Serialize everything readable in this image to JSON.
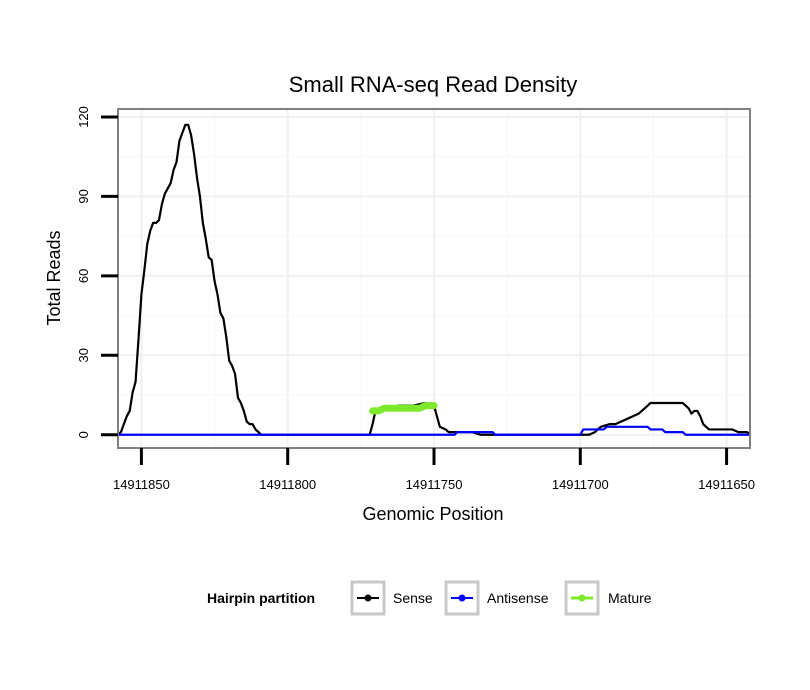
{
  "chart_data": {
    "type": "line",
    "title": "Small RNA-seq Read Density",
    "xlabel": "Genomic Position",
    "ylabel": "Total Reads",
    "x_reversed": true,
    "xlim": [
      14911858,
      14911642
    ],
    "ylim": [
      -5,
      123
    ],
    "x_ticks": [
      14911850,
      14911800,
      14911750,
      14911700,
      14911650
    ],
    "y_ticks": [
      0,
      30,
      60,
      90,
      120
    ],
    "grid": true,
    "legend": {
      "title": "Hairpin partition",
      "position": "bottom",
      "entries": [
        "Sense",
        "Antisense",
        "Mature"
      ]
    },
    "series": [
      {
        "name": "Sense",
        "color": "#000000",
        "points": [
          [
            14911858,
            0
          ],
          [
            14911857,
            1
          ],
          [
            14911856,
            4
          ],
          [
            14911855,
            7
          ],
          [
            14911854,
            9
          ],
          [
            14911853,
            16
          ],
          [
            14911852,
            20
          ],
          [
            14911851,
            36
          ],
          [
            14911850,
            53
          ],
          [
            14911849,
            62
          ],
          [
            14911848,
            72
          ],
          [
            14911847,
            77
          ],
          [
            14911846,
            80
          ],
          [
            14911845,
            80
          ],
          [
            14911844,
            81
          ],
          [
            14911843,
            87
          ],
          [
            14911842,
            91
          ],
          [
            14911841,
            93
          ],
          [
            14911840,
            95
          ],
          [
            14911839,
            100
          ],
          [
            14911838,
            103
          ],
          [
            14911837,
            111
          ],
          [
            14911836,
            114
          ],
          [
            14911835,
            117
          ],
          [
            14911834,
            117
          ],
          [
            14911833,
            113
          ],
          [
            14911832,
            106
          ],
          [
            14911831,
            97
          ],
          [
            14911830,
            90
          ],
          [
            14911829,
            80
          ],
          [
            14911828,
            74
          ],
          [
            14911827,
            67
          ],
          [
            14911826,
            66
          ],
          [
            14911825,
            58
          ],
          [
            14911824,
            53
          ],
          [
            14911823,
            46
          ],
          [
            14911822,
            44
          ],
          [
            14911821,
            37
          ],
          [
            14911820,
            28
          ],
          [
            14911819,
            26
          ],
          [
            14911818,
            23
          ],
          [
            14911817,
            14
          ],
          [
            14911816,
            12
          ],
          [
            14911815,
            9
          ],
          [
            14911814,
            5
          ],
          [
            14911813,
            4
          ],
          [
            14911812,
            4
          ],
          [
            14911811,
            2
          ],
          [
            14911810,
            1
          ],
          [
            14911809,
            0
          ],
          [
            14911790,
            0
          ],
          [
            14911772,
            0
          ],
          [
            14911771,
            4
          ],
          [
            14911770,
            9
          ],
          [
            14911769,
            10
          ],
          [
            14911766,
            10
          ],
          [
            14911762,
            11
          ],
          [
            14911757,
            11
          ],
          [
            14911753,
            12
          ],
          [
            14911751,
            11
          ],
          [
            14911750,
            11
          ],
          [
            14911748,
            3
          ],
          [
            14911746,
            2
          ],
          [
            14911745,
            1
          ],
          [
            14911742,
            1
          ],
          [
            14911737,
            1
          ],
          [
            14911734,
            0
          ],
          [
            14911725,
            0
          ],
          [
            14911710,
            0
          ],
          [
            14911700,
            0
          ],
          [
            14911697,
            0
          ],
          [
            14911695,
            1
          ],
          [
            14911693,
            3
          ],
          [
            14911690,
            4
          ],
          [
            14911688,
            4
          ],
          [
            14911686,
            5
          ],
          [
            14911684,
            6
          ],
          [
            14911682,
            7
          ],
          [
            14911680,
            8
          ],
          [
            14911678,
            10
          ],
          [
            14911677,
            11
          ],
          [
            14911676,
            12
          ],
          [
            14911670,
            12
          ],
          [
            14911665,
            12
          ],
          [
            14911663,
            10
          ],
          [
            14911662,
            8
          ],
          [
            14911661,
            9
          ],
          [
            14911660,
            9
          ],
          [
            14911659,
            7
          ],
          [
            14911658,
            4
          ],
          [
            14911656,
            2
          ],
          [
            14911652,
            2
          ],
          [
            14911648,
            2
          ],
          [
            14911646,
            1
          ],
          [
            14911643,
            1
          ],
          [
            14911642,
            0
          ]
        ]
      },
      {
        "name": "Antisense",
        "color": "#0000ff",
        "points": [
          [
            14911858,
            0
          ],
          [
            14911790,
            0
          ],
          [
            14911750,
            0
          ],
          [
            14911743,
            0
          ],
          [
            14911742,
            1
          ],
          [
            14911730,
            1
          ],
          [
            14911729,
            0
          ],
          [
            14911700,
            0
          ],
          [
            14911699,
            2
          ],
          [
            14911692,
            2
          ],
          [
            14911691,
            3
          ],
          [
            14911677,
            3
          ],
          [
            14911676,
            2
          ],
          [
            14911672,
            2
          ],
          [
            14911671,
            1
          ],
          [
            14911665,
            1
          ],
          [
            14911664,
            0
          ],
          [
            14911642,
            0
          ]
        ]
      },
      {
        "name": "Mature",
        "color": "#7ee82a",
        "points": [
          [
            14911771,
            9
          ],
          [
            14911769,
            9
          ],
          [
            14911767,
            10
          ],
          [
            14911760,
            10
          ],
          [
            14911755,
            10
          ],
          [
            14911753,
            11
          ],
          [
            14911750,
            11
          ]
        ]
      }
    ]
  }
}
